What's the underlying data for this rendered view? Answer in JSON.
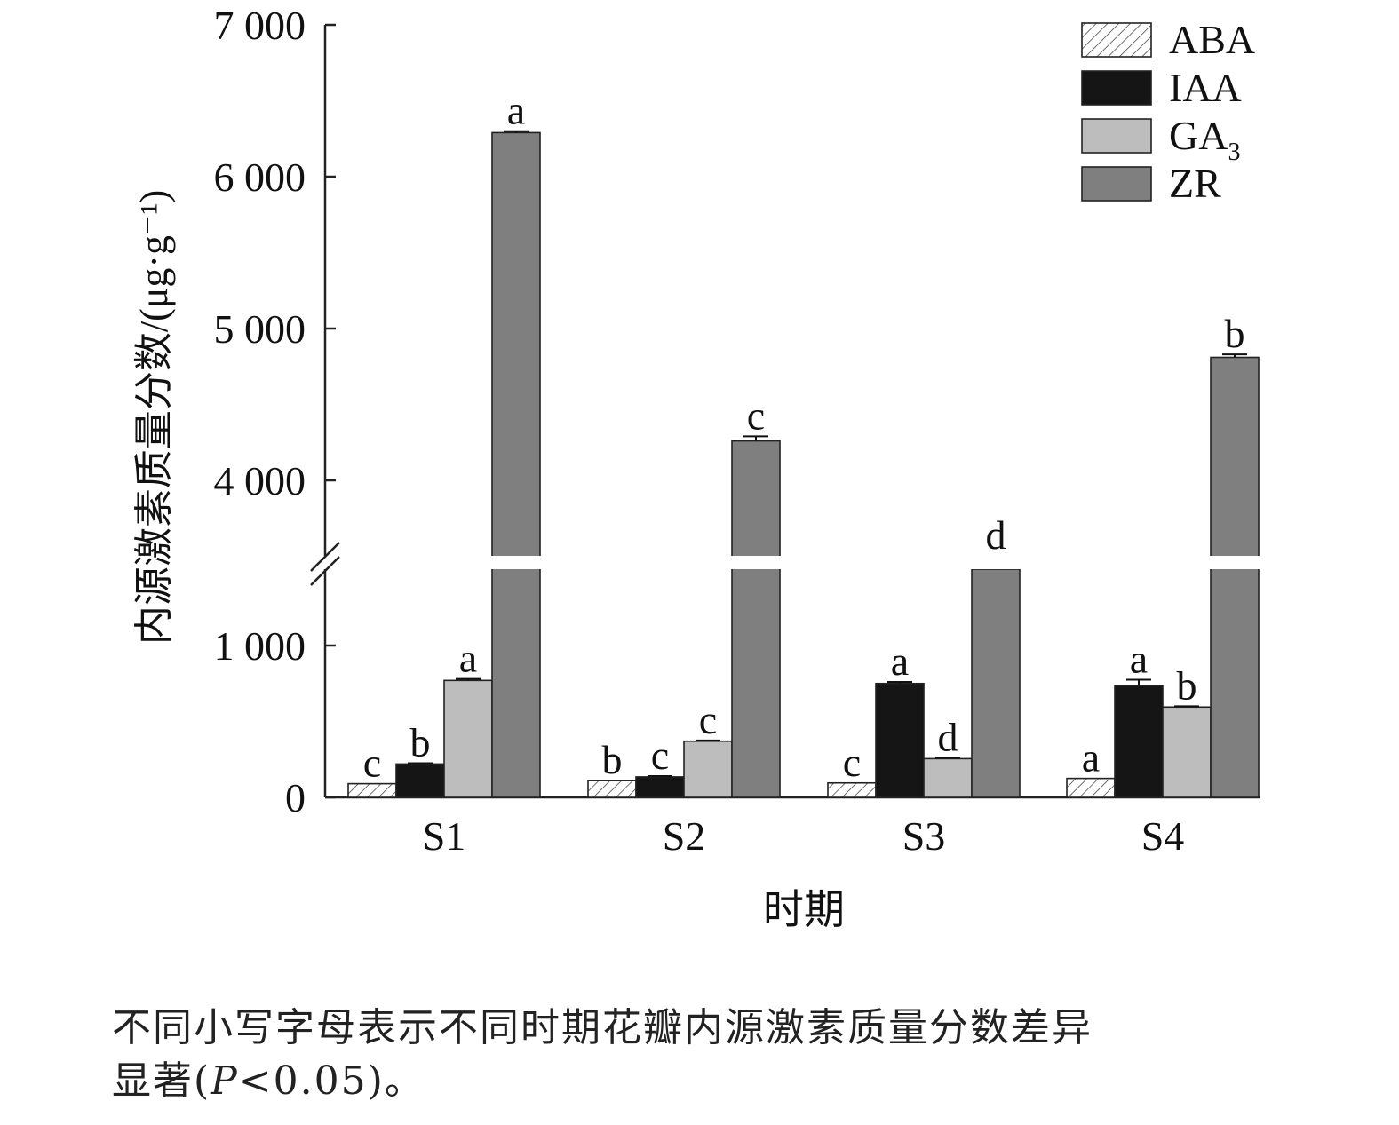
{
  "chart_data": {
    "type": "bar",
    "categories": [
      "S1",
      "S2",
      "S3",
      "S4"
    ],
    "xlabel": "时期",
    "ylabel": "内源激素质量分数/(μg·g⁻¹)",
    "y_ticks_lower": [
      {
        "value": 0,
        "label": "0"
      },
      {
        "value": 1000,
        "label": "1 000"
      }
    ],
    "y_ticks_upper": [
      {
        "value": 4000,
        "label": "4 000"
      },
      {
        "value": 5000,
        "label": "5 000"
      },
      {
        "value": 6000,
        "label": "6 000"
      },
      {
        "value": 7000,
        "label": "7 000"
      }
    ],
    "axis_break": {
      "lower_range": [
        0,
        1500
      ],
      "upper_range": [
        3500,
        7000
      ]
    },
    "legend_position": "top-right",
    "series": [
      {
        "name": "ABA",
        "fill": "hatch",
        "values": [
          90,
          110,
          95,
          125
        ],
        "letters": [
          "c",
          "b",
          "c",
          "a"
        ],
        "errors": [
          0,
          0,
          0,
          0
        ]
      },
      {
        "name": "IAA",
        "fill": "#151515",
        "values": [
          220,
          135,
          750,
          735
        ],
        "letters": [
          "b",
          "c",
          "a",
          "a"
        ],
        "errors": [
          5,
          5,
          10,
          40
        ]
      },
      {
        "name": "GA",
        "name_sub": "3",
        "fill": "#bdbdbd",
        "values": [
          770,
          370,
          255,
          595
        ],
        "letters": [
          "a",
          "c",
          "d",
          "b"
        ],
        "errors": [
          10,
          5,
          5,
          5
        ]
      },
      {
        "name": "ZR",
        "fill": "#7f7f7f",
        "values": [
          6290,
          4260,
          3450,
          4810
        ],
        "letters": [
          "a",
          "c",
          "d",
          "b"
        ],
        "errors": [
          10,
          30,
          0,
          20
        ]
      }
    ]
  },
  "caption": {
    "line1": "不同小写字母表示不同时期花瓣内源激素质量分数差异",
    "line2_prefix": "显著(",
    "line2_p": "P",
    "line2_suffix": "<0.05)。"
  }
}
